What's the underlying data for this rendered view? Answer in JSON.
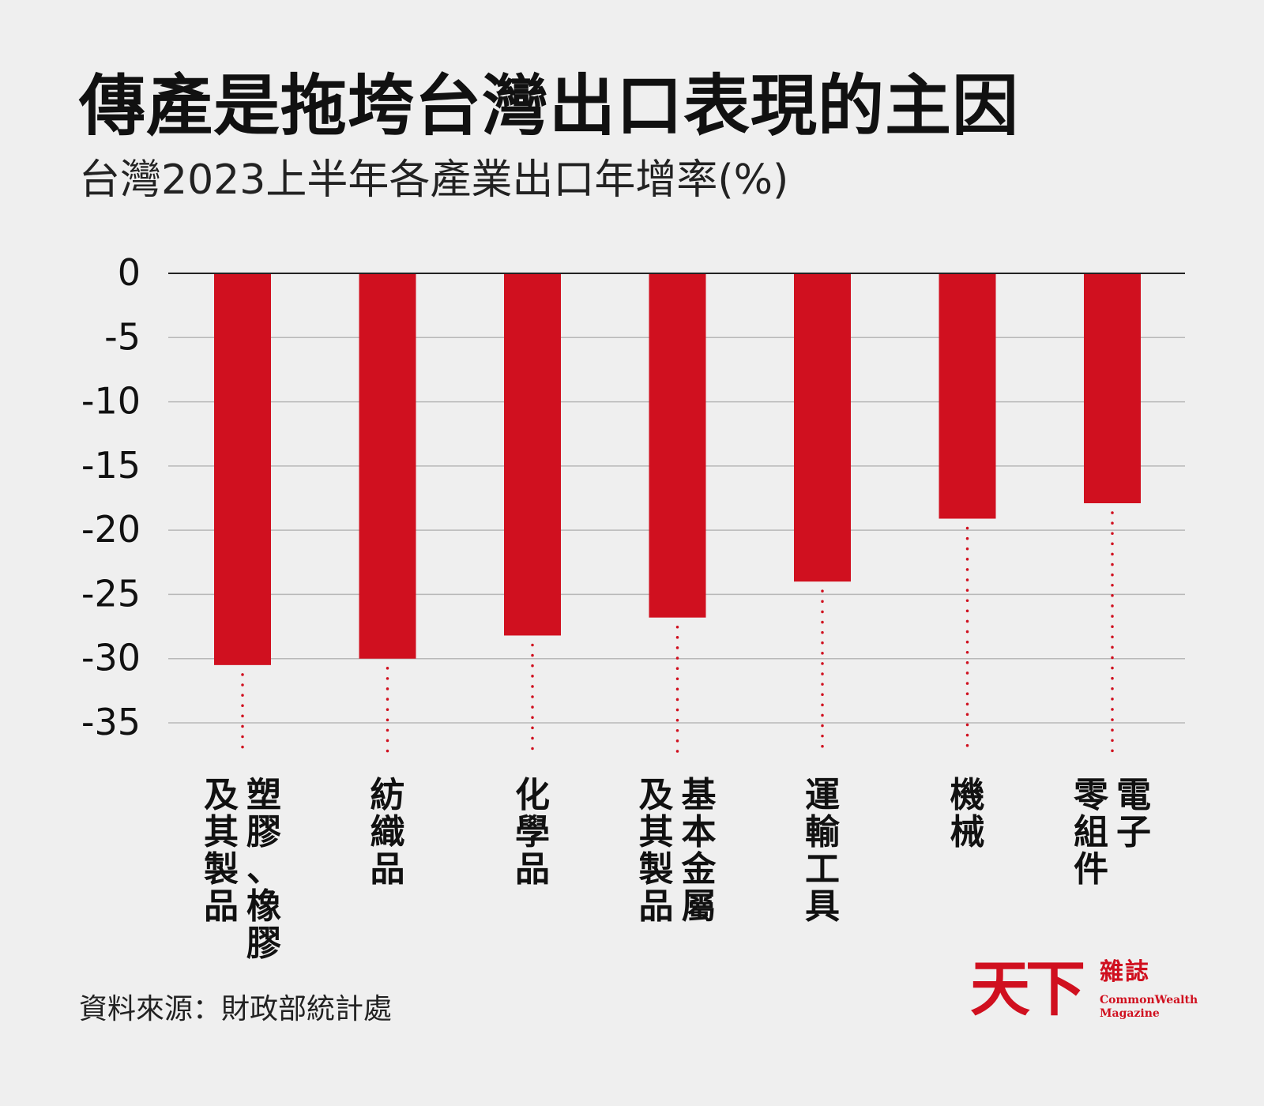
{
  "title": "傳產是拖垮台灣出口表現的主因",
  "subtitle": "台灣2023上半年各產業出口年增率(%)",
  "source": "資料來源：財政部統計處",
  "logo": {
    "main": "天下",
    "zh": "雜誌",
    "en_line1": "CommonWealth",
    "en_line2": "Magazine"
  },
  "colors": {
    "bar": "#d0101f",
    "grid": "#b8b8b8",
    "background": "#efefef",
    "text": "#111111"
  },
  "chart_data": {
    "type": "bar",
    "categories": [
      [
        "塑膠、橡膠",
        "及其製品"
      ],
      [
        "紡織品"
      ],
      [
        "化學品"
      ],
      [
        "基本金屬",
        "及其製品"
      ],
      [
        "運輸工具"
      ],
      [
        "機械"
      ],
      [
        "電子",
        "零組件"
      ]
    ],
    "values": [
      -30.5,
      -30.0,
      -28.2,
      -26.8,
      -24.0,
      -19.1,
      -17.9
    ],
    "ylim": [
      -35,
      0
    ],
    "yticks": [
      0,
      -5,
      -10,
      -15,
      -20,
      -25,
      -30,
      -35
    ],
    "grid": true
  }
}
